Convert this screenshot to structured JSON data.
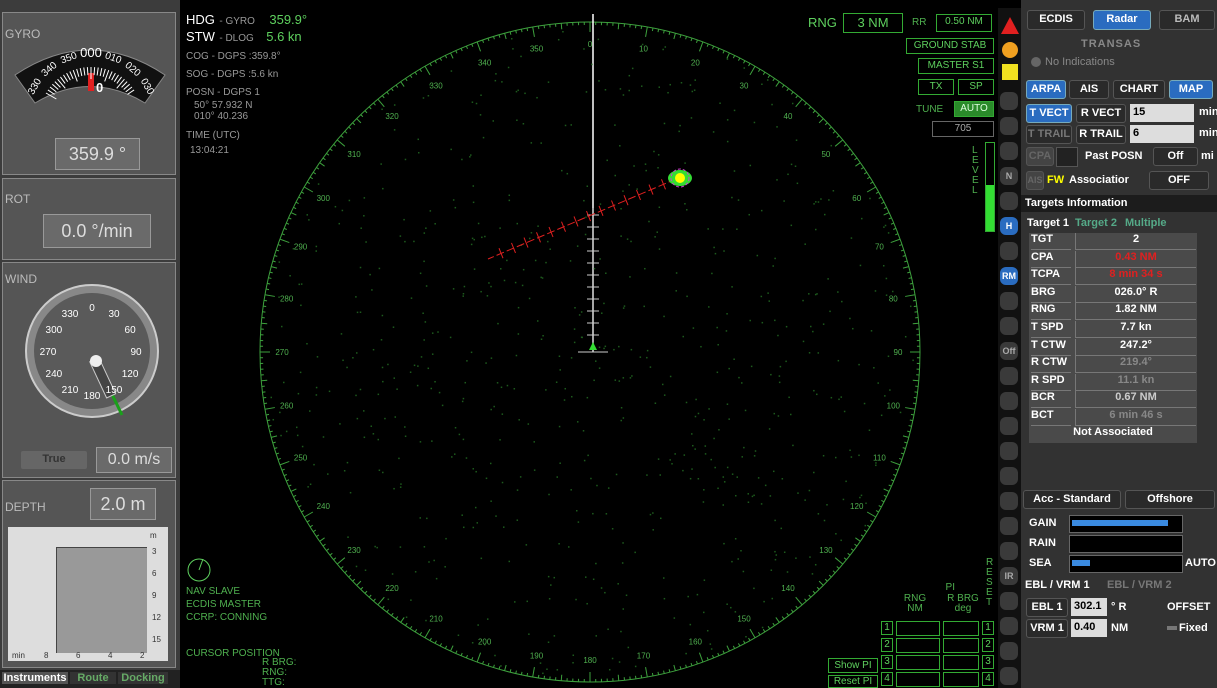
{
  "left_panel": {
    "gyro": {
      "label": "GYRO",
      "scale": [
        "330",
        "340",
        "350",
        "000",
        "010",
        "020",
        "030"
      ],
      "pointer": "0",
      "readout": "359.9 °"
    },
    "rot": {
      "label": "ROT",
      "readout": "0.0 °/min"
    },
    "wind": {
      "label": "WIND",
      "dial": [
        "0",
        "30",
        "60",
        "90",
        "120",
        "150",
        "180",
        "210",
        "240",
        "270",
        "300",
        "330"
      ],
      "mode": "True",
      "readout": "0.0 m/s"
    },
    "depth": {
      "label": "DEPTH",
      "readout": "2.0 m",
      "unit": "m",
      "depth_scale": [
        "3",
        "6",
        "9",
        "12",
        "15"
      ],
      "time_scale": [
        "min",
        "8",
        "6",
        "4",
        "2"
      ]
    },
    "tabs": [
      "Instruments",
      "Route",
      "Docking"
    ]
  },
  "nav_data": {
    "hdg": {
      "label": "HDG",
      "source": "- GYRO",
      "value": "359.9°"
    },
    "stw": {
      "label": "STW",
      "source": "- DLOG",
      "value": "5.6 kn"
    },
    "cog": {
      "label": "COG",
      "source": "- DGPS",
      "value": "359.8°"
    },
    "sog": {
      "label": "SOG",
      "source": "- DGPS",
      "value": "5.6 kn"
    },
    "posn": {
      "label": "POSN",
      "source": "- DGPS 1",
      "lat": "50° 57.932 N",
      "lon": "010° 40.236"
    },
    "time": {
      "label": "TIME (UTC)",
      "value": "13:04:21"
    }
  },
  "radar_controls": {
    "rng_label": "RNG",
    "rng": "3 NM",
    "rr_label": "RR",
    "rr": "0.50 NM",
    "stab": "GROUND STAB",
    "master": "MASTER S1",
    "tx": "TX",
    "sp": "SP",
    "tune": "TUNE",
    "tune_mode": "AUTO",
    "tune_value": "705",
    "level": "LEVEL"
  },
  "bearing_labels": [
    "0",
    "10",
    "20",
    "30",
    "40",
    "50",
    "60",
    "70",
    "80",
    "90",
    "100",
    "110",
    "120",
    "130",
    "140",
    "150",
    "160",
    "170",
    "180",
    "190",
    "200",
    "210",
    "220",
    "230",
    "240",
    "250",
    "260",
    "270",
    "280",
    "290",
    "300",
    "310",
    "320",
    "330",
    "340",
    "350"
  ],
  "status": [
    "NAV SLAVE",
    "ECDIS MASTER",
    "CCRP: CONNING"
  ],
  "cursor": {
    "label": "CURSOR POSITION",
    "fields": [
      "R BRG:",
      "RNG:",
      "TTG:"
    ]
  },
  "pi": {
    "rng_header": "RNG NM",
    "pi_header": "PI",
    "brg_header": "R BRG deg",
    "reset": "RESET",
    "rows": [
      "1",
      "2",
      "3",
      "4"
    ],
    "show": "Show PI",
    "reset_pi": "Reset PI"
  },
  "toolbar": [
    "N",
    "H",
    "RM",
    "Off",
    "IR"
  ],
  "right_panel": {
    "tabs": [
      "ECDIS",
      "Radar",
      "BAM"
    ],
    "logo": "TRANSAS",
    "indications": "No Indications",
    "layers": [
      "ARPA",
      "AIS",
      "CHART",
      "MAP"
    ],
    "t_vect": "T VECT",
    "r_vect": "R VECT",
    "vect_time": "15",
    "vect_unit": "min",
    "t_trail": "T TRAIL",
    "r_trail": "R TRAIL",
    "trail_time": "6",
    "trail_unit": "min",
    "cpa": "CPA",
    "past_posn": "Past POSN",
    "past_value": "Off",
    "past_unit": "mi",
    "ais": "AIS",
    "fw": "FW",
    "association": "Associatior",
    "association_value": "OFF",
    "targets_header": "Targets Information",
    "target_tabs": [
      "Target 1",
      "Target 2",
      "Multiple"
    ],
    "table": [
      [
        "TGT",
        "2"
      ],
      [
        "CPA",
        "0.43 NM"
      ],
      [
        "TCPA",
        "8 min 34 s"
      ],
      [
        "BRG",
        "026.0° R"
      ],
      [
        "RNG",
        "1.82 NM"
      ],
      [
        "T SPD",
        "7.7 kn"
      ],
      [
        "T CTW",
        "247.2°"
      ],
      [
        "R CTW",
        "219.4°"
      ],
      [
        "R SPD",
        "11.1 kn"
      ],
      [
        "BCR",
        "0.67 NM"
      ],
      [
        "BCT",
        "6 min 46 s"
      ]
    ],
    "not_associated": "Not Associated",
    "acc": "Acc - Standard",
    "mode": "Offshore",
    "gain": "GAIN",
    "rain": "RAIN",
    "sea": "SEA",
    "auto": "AUTO",
    "ebl_tabs": [
      "EBL / VRM 1",
      "EBL / VRM 2"
    ],
    "ebl": {
      "label": "EBL 1",
      "value": "302.1",
      "unit": "° R",
      "offset": "OFFSET"
    },
    "vrm": {
      "label": "VRM 1",
      "value": "0.40",
      "unit": "NM",
      "fixed": "Fixed"
    }
  }
}
